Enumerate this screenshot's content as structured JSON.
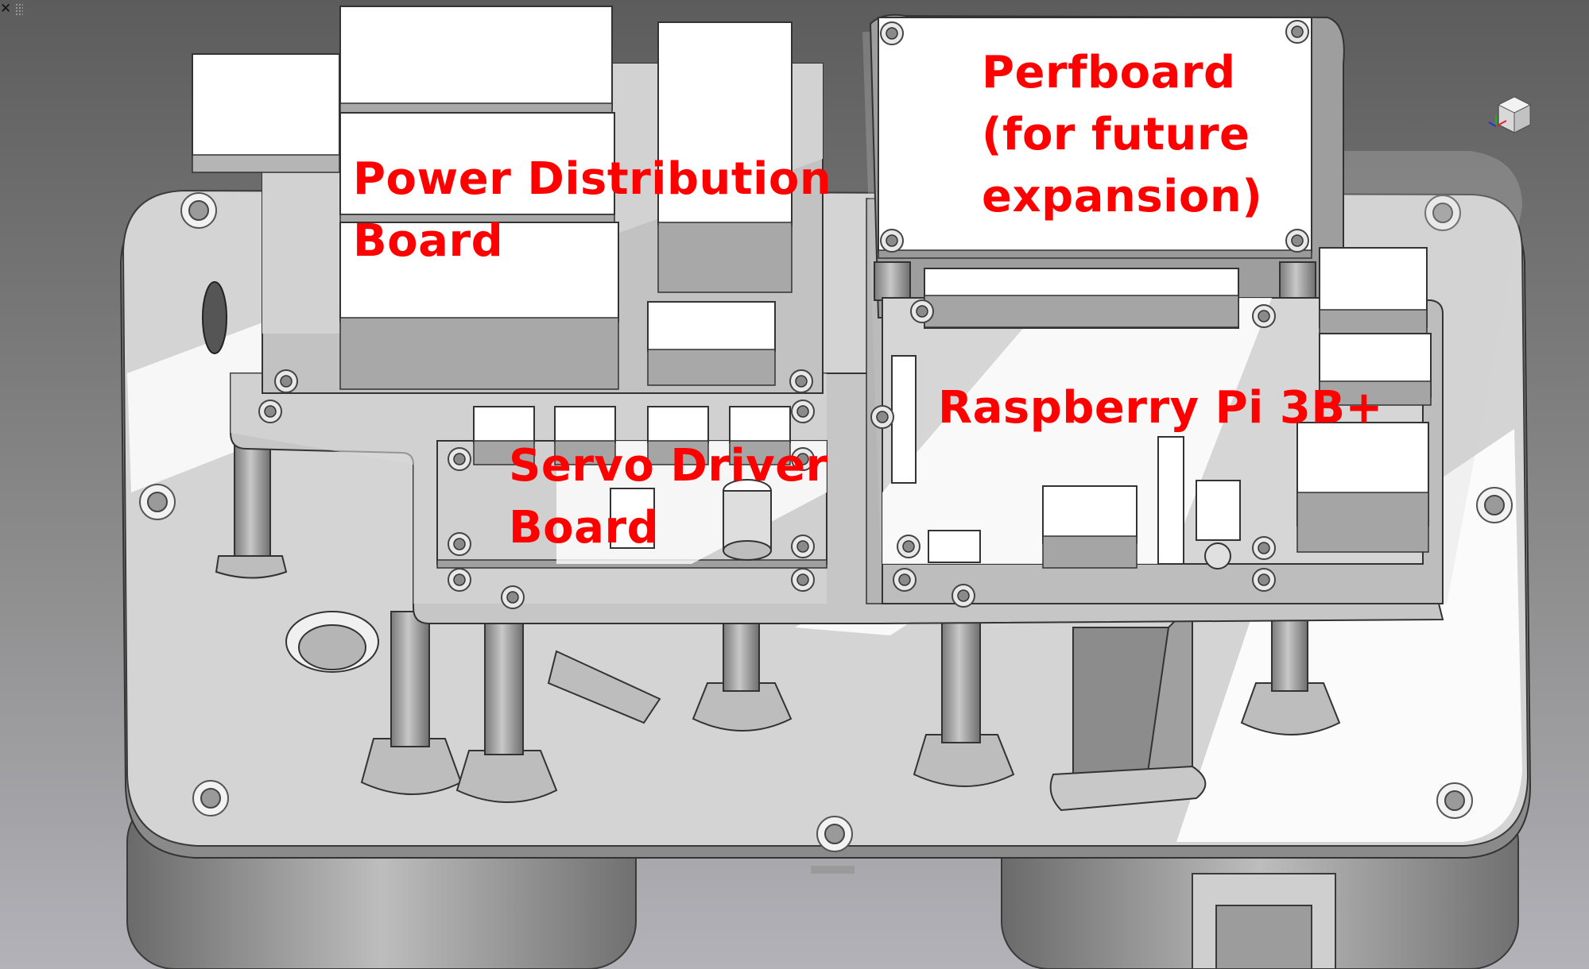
{
  "viewport": {
    "close_icon": "close-icon",
    "close_glyph": "✕",
    "grip_icon": "drag-grip-icon",
    "view_cube_icon": "view-cube-icon"
  },
  "colors": {
    "label": "#ff0000",
    "background_top": "#5e5e5e",
    "background_bottom": "#aaaaaa",
    "plate_face": "#d2d2d2",
    "plate_edge": "#8a8a8a",
    "component_light": "#ffffff",
    "component_shadow": "#9a9a9a"
  },
  "labels": [
    {
      "id": "power-distribution-board",
      "text": "Power Distribution\nBoard"
    },
    {
      "id": "perfboard",
      "text": "Perfboard\n(for future\nexpansion)"
    },
    {
      "id": "raspberry-pi",
      "text": "Raspberry Pi 3B+"
    },
    {
      "id": "servo-driver-board",
      "text": "Servo Driver\nBoard"
    }
  ]
}
